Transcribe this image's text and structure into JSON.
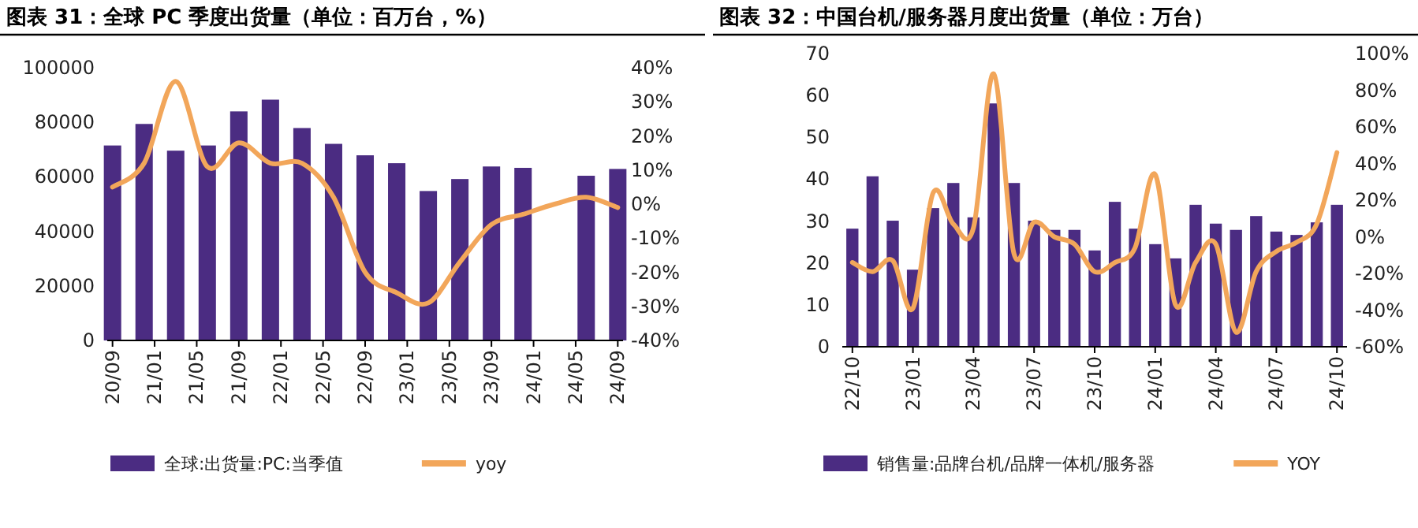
{
  "chart_data": [
    {
      "type": "bar",
      "title": "图表 31：全球 PC 季度出货量（单位：百万台，%）",
      "categories": [
        "20/09",
        null,
        null,
        null,
        "21/01",
        null,
        null,
        null,
        "21/05",
        null,
        null,
        null,
        "21/09",
        null,
        null,
        null,
        "22/01",
        null,
        null,
        null,
        "22/05",
        null,
        null,
        null,
        "22/09",
        null,
        null,
        null,
        "23/01",
        null,
        null,
        null,
        "23/05",
        null,
        null,
        null,
        "23/09",
        null,
        null,
        null,
        "24/01",
        null,
        null,
        null,
        "24/05",
        null,
        null,
        null,
        "24/09"
      ],
      "ylim": [
        0,
        100000
      ],
      "yticks": [
        0,
        20000,
        40000,
        60000,
        80000,
        100000
      ],
      "y2lim": [
        -40,
        40
      ],
      "y2ticks": [
        {
          "value": -40,
          "label": "-40%"
        },
        {
          "value": -30,
          "label": "-30%"
        },
        {
          "value": -20,
          "label": "-20%"
        },
        {
          "value": -10,
          "label": "-10%"
        },
        {
          "value": 0,
          "label": "0%"
        },
        {
          "value": 10,
          "label": "10%"
        },
        {
          "value": 20,
          "label": "20%"
        },
        {
          "value": 30,
          "label": "30%"
        },
        {
          "value": 40,
          "label": "40%"
        }
      ],
      "legend": "bottom",
      "series": [
        {
          "name": "全球:出货量:PC:当季值",
          "color": "#4b2c82",
          "values": [
            71500,
            null,
            null,
            79400,
            null,
            null,
            69600,
            null,
            null,
            71500,
            null,
            null,
            84000,
            null,
            null,
            88300,
            null,
            null,
            77900,
            null,
            null,
            72100,
            null,
            null,
            67900,
            null,
            null,
            65000,
            null,
            null,
            54800,
            null,
            null,
            59200,
            null,
            null,
            63800,
            null,
            null,
            63300,
            null,
            null,
            null,
            null,
            null,
            60400,
            null,
            null,
            62900
          ]
        },
        {
          "name": "yoy",
          "type": "line",
          "axis": "y2",
          "color": "#f2a65a",
          "values": [
            5,
            null,
            null,
            12,
            null,
            null,
            36,
            null,
            null,
            11,
            null,
            null,
            18,
            null,
            null,
            12,
            null,
            null,
            12,
            null,
            null,
            2,
            null,
            null,
            -20,
            null,
            null,
            -26,
            null,
            null,
            -29,
            null,
            null,
            -17,
            null,
            null,
            -6,
            null,
            null,
            -3,
            null,
            null,
            0,
            null,
            null,
            2,
            null,
            null,
            -1
          ]
        }
      ]
    },
    {
      "type": "bar",
      "title": "图表 32：中国台机/服务器月度出货量（单位：万台）",
      "categories": [
        "22/10",
        null,
        null,
        "23/01",
        null,
        null,
        "23/04",
        null,
        null,
        "23/07",
        null,
        null,
        "23/10",
        null,
        null,
        "24/01",
        null,
        null,
        "24/04",
        null,
        null,
        "24/07",
        null,
        null,
        "24/10"
      ],
      "ylim": [
        0,
        70
      ],
      "yticks": [
        0,
        10,
        20,
        30,
        40,
        50,
        60,
        70
      ],
      "y2lim": [
        -60,
        100
      ],
      "y2ticks": [
        {
          "value": -60,
          "label": "-60%"
        },
        {
          "value": -40,
          "label": "-40%"
        },
        {
          "value": -20,
          "label": "-20%"
        },
        {
          "value": 0,
          "label": "0%"
        },
        {
          "value": 20,
          "label": "20%"
        },
        {
          "value": 40,
          "label": "40%"
        },
        {
          "value": 60,
          "label": "60%"
        },
        {
          "value": 80,
          "label": "80%"
        },
        {
          "value": 100,
          "label": "100%"
        }
      ],
      "legend": "bottom",
      "series": [
        {
          "name": "销售量:品牌台机/品牌一体机/服务器",
          "color": "#4b2c82",
          "values": [
            28.2,
            40.7,
            30.1,
            18.4,
            33.1,
            39.1,
            30.9,
            58.1,
            39.1,
            30.1,
            27.9,
            27.9,
            23.0,
            34.6,
            28.2,
            24.5,
            21.1,
            33.9,
            29.4,
            27.9,
            31.2,
            27.5,
            26.7,
            29.7,
            33.9
          ]
        },
        {
          "name": "YOY",
          "type": "line",
          "axis": "y2",
          "color": "#f2a65a",
          "values": [
            -14,
            -19,
            -13,
            -39,
            24,
            7,
            5,
            89,
            -9,
            8,
            0,
            -4,
            -19,
            -14,
            -6,
            34,
            -37,
            -14,
            -4,
            -52,
            -19,
            -8,
            -3,
            7,
            46
          ]
        }
      ]
    }
  ]
}
